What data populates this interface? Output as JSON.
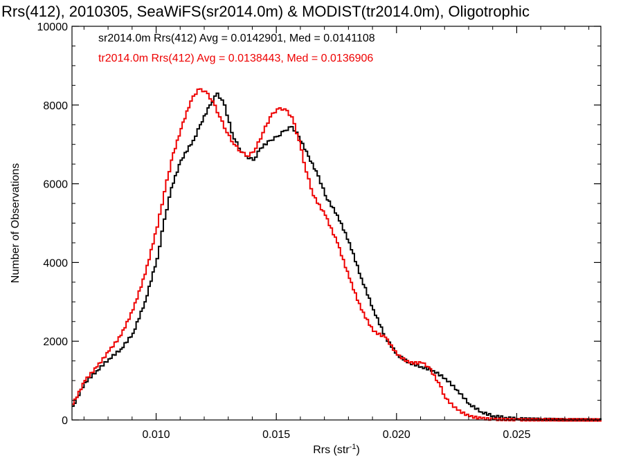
{
  "chart_data": {
    "type": "line",
    "title": "Rrs(412), 2010305, SeaWiFS(sr2014.0m) & MODIST(tr2014.0m), Oligotrophic",
    "xlabel": "Rrs (str",
    "xlabel_sup": "-1",
    "xlabel_end": ")",
    "ylabel": "Number of Observations",
    "xlim": [
      0.0065,
      0.0285
    ],
    "ylim": [
      0,
      10000
    ],
    "xticks": [
      0.01,
      0.015,
      0.02,
      0.025
    ],
    "xtick_labels": [
      "0.010",
      "0.015",
      "0.020",
      "0.025"
    ],
    "yticks": [
      0,
      2000,
      4000,
      6000,
      8000,
      10000
    ],
    "ytick_labels": [
      "0",
      "2000",
      "4000",
      "6000",
      "8000",
      "10000"
    ],
    "grid": false,
    "legend_position": "top-left",
    "series": [
      {
        "name": "sr2014.0m Rrs(412) Avg = 0.0142901, Med = 0.0141108",
        "color": "#000000",
        "points": [
          [
            0.0065,
            350
          ],
          [
            0.007,
            950
          ],
          [
            0.0075,
            1250
          ],
          [
            0.008,
            1550
          ],
          [
            0.0085,
            1800
          ],
          [
            0.009,
            2200
          ],
          [
            0.0095,
            3000
          ],
          [
            0.01,
            4100
          ],
          [
            0.0103,
            5100
          ],
          [
            0.0106,
            5900
          ],
          [
            0.011,
            6600
          ],
          [
            0.0115,
            7100
          ],
          [
            0.0118,
            7500
          ],
          [
            0.0122,
            8000
          ],
          [
            0.0125,
            8300
          ],
          [
            0.0128,
            8000
          ],
          [
            0.0131,
            7300
          ],
          [
            0.0134,
            6900
          ],
          [
            0.0137,
            6700
          ],
          [
            0.014,
            6600
          ],
          [
            0.0143,
            6900
          ],
          [
            0.0147,
            7100
          ],
          [
            0.015,
            7200
          ],
          [
            0.0153,
            7350
          ],
          [
            0.0156,
            7450
          ],
          [
            0.0159,
            7200
          ],
          [
            0.0163,
            6700
          ],
          [
            0.0167,
            6200
          ],
          [
            0.017,
            5700
          ],
          [
            0.0175,
            5200
          ],
          [
            0.018,
            4500
          ],
          [
            0.0185,
            3600
          ],
          [
            0.019,
            2800
          ],
          [
            0.0195,
            2100
          ],
          [
            0.02,
            1650
          ],
          [
            0.0205,
            1450
          ],
          [
            0.021,
            1350
          ],
          [
            0.0215,
            1250
          ],
          [
            0.022,
            1050
          ],
          [
            0.0225,
            750
          ],
          [
            0.023,
            400
          ],
          [
            0.0235,
            200
          ],
          [
            0.024,
            100
          ],
          [
            0.0245,
            60
          ],
          [
            0.025,
            30
          ],
          [
            0.026,
            15
          ],
          [
            0.027,
            5
          ],
          [
            0.0285,
            0
          ]
        ]
      },
      {
        "name": "tr2014.0m Rrs(412) Avg = 0.0138443, Med = 0.0136906",
        "color": "#ee0000",
        "points": [
          [
            0.0065,
            400
          ],
          [
            0.007,
            1000
          ],
          [
            0.0075,
            1350
          ],
          [
            0.008,
            1750
          ],
          [
            0.0085,
            2150
          ],
          [
            0.009,
            2800
          ],
          [
            0.0095,
            3700
          ],
          [
            0.01,
            4900
          ],
          [
            0.0103,
            5800
          ],
          [
            0.0106,
            6600
          ],
          [
            0.011,
            7400
          ],
          [
            0.0114,
            8100
          ],
          [
            0.0117,
            8400
          ],
          [
            0.012,
            8350
          ],
          [
            0.0123,
            8100
          ],
          [
            0.0126,
            7700
          ],
          [
            0.0129,
            7300
          ],
          [
            0.0132,
            7000
          ],
          [
            0.0135,
            6800
          ],
          [
            0.0138,
            6700
          ],
          [
            0.0141,
            6900
          ],
          [
            0.0144,
            7300
          ],
          [
            0.0147,
            7700
          ],
          [
            0.015,
            7900
          ],
          [
            0.0153,
            7900
          ],
          [
            0.0156,
            7700
          ],
          [
            0.0159,
            7100
          ],
          [
            0.0162,
            6300
          ],
          [
            0.0165,
            5700
          ],
          [
            0.017,
            5200
          ],
          [
            0.0175,
            4500
          ],
          [
            0.018,
            3600
          ],
          [
            0.0185,
            2800
          ],
          [
            0.019,
            2250
          ],
          [
            0.0195,
            2100
          ],
          [
            0.02,
            1650
          ],
          [
            0.0205,
            1450
          ],
          [
            0.021,
            1450
          ],
          [
            0.0213,
            1350
          ],
          [
            0.0217,
            950
          ],
          [
            0.022,
            550
          ],
          [
            0.0225,
            250
          ],
          [
            0.023,
            90
          ],
          [
            0.0235,
            40
          ],
          [
            0.024,
            15
          ],
          [
            0.025,
            5
          ],
          [
            0.0285,
            0
          ]
        ]
      }
    ]
  }
}
